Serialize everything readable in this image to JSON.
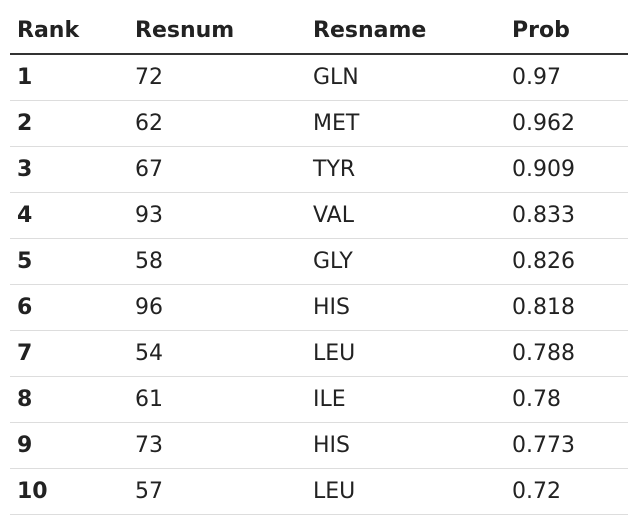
{
  "table": {
    "headers": [
      "Rank",
      "Resnum",
      "Resname",
      "Prob"
    ],
    "rows": [
      {
        "rank": "1",
        "resnum": "72",
        "resname": "GLN",
        "prob": "0.97"
      },
      {
        "rank": "2",
        "resnum": "62",
        "resname": "MET",
        "prob": "0.962"
      },
      {
        "rank": "3",
        "resnum": "67",
        "resname": "TYR",
        "prob": "0.909"
      },
      {
        "rank": "4",
        "resnum": "93",
        "resname": "VAL",
        "prob": "0.833"
      },
      {
        "rank": "5",
        "resnum": "58",
        "resname": "GLY",
        "prob": "0.826"
      },
      {
        "rank": "6",
        "resnum": "96",
        "resname": "HIS",
        "prob": "0.818"
      },
      {
        "rank": "7",
        "resnum": "54",
        "resname": "LEU",
        "prob": "0.788"
      },
      {
        "rank": "8",
        "resnum": "61",
        "resname": "ILE",
        "prob": "0.78"
      },
      {
        "rank": "9",
        "resnum": "73",
        "resname": "HIS",
        "prob": "0.773"
      },
      {
        "rank": "10",
        "resnum": "57",
        "resname": "LEU",
        "prob": "0.72"
      }
    ]
  }
}
